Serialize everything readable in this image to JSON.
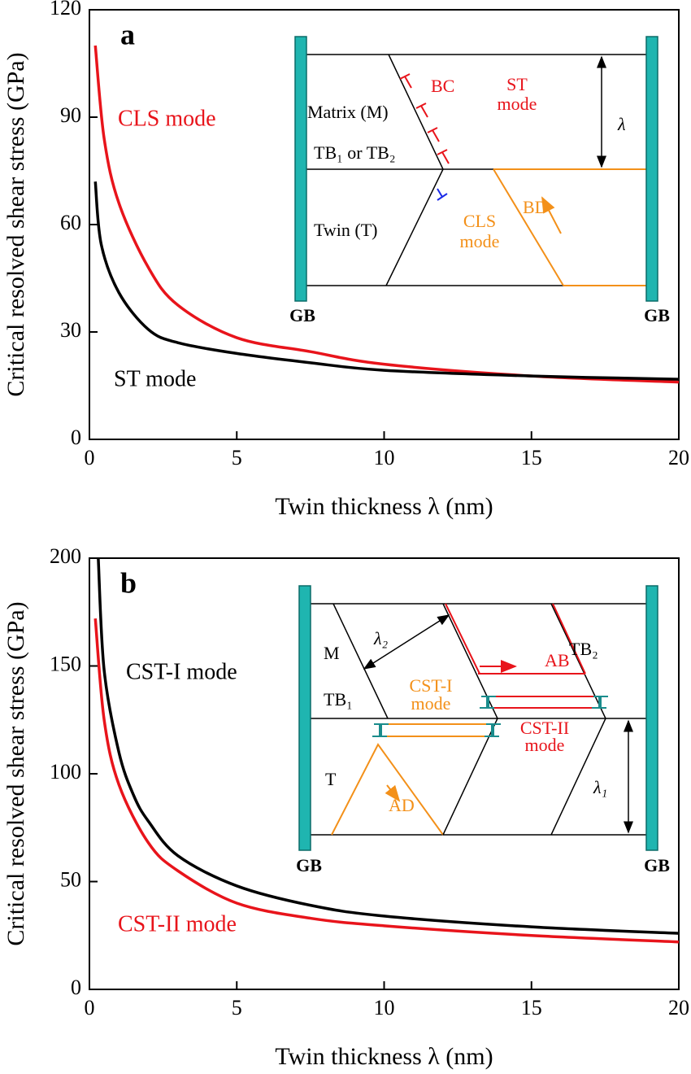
{
  "chart_data": [
    {
      "type": "line",
      "panel_label": "a",
      "x_label": "Twin thickness λ (nm)",
      "y_label": "Critical resolved shear stress (GPa)",
      "xlim": [
        0,
        20
      ],
      "ylim": [
        0,
        120
      ],
      "xticks": [
        0,
        5,
        10,
        15,
        20
      ],
      "yticks": [
        0,
        30,
        60,
        90,
        120
      ],
      "series": [
        {
          "name": "CLS mode",
          "color": "#e8141b",
          "x": [
            0.2,
            0.5,
            1,
            2,
            3,
            5,
            7.5,
            10,
            15,
            20
          ],
          "values": [
            110,
            84,
            66,
            48,
            37.5,
            28.4,
            24.5,
            21,
            17.7,
            16
          ]
        },
        {
          "name": "ST mode",
          "color": "#000000",
          "x": [
            0.2,
            0.4,
            1,
            2,
            3,
            5,
            7.5,
            10,
            15,
            20
          ],
          "values": [
            72,
            54.5,
            41,
            30.7,
            27,
            24,
            21.4,
            19.3,
            17.7,
            16.8
          ]
        }
      ],
      "inset_labels": [
        "BC",
        "ST",
        "mode",
        "Matrix (M)",
        "λ",
        "TB₁ or TB₂",
        "Twin (T)",
        "CLS",
        "mode",
        "BD",
        "GB",
        "GB"
      ]
    },
    {
      "type": "line",
      "panel_label": "b",
      "x_label": "Twin thickness λ (nm)",
      "y_label": "Critical resolved shear stress (GPa)",
      "xlim": [
        0,
        20
      ],
      "ylim": [
        0,
        200
      ],
      "xticks": [
        0,
        5,
        10,
        15,
        20
      ],
      "yticks": [
        0,
        50,
        100,
        150,
        200
      ],
      "series": [
        {
          "name": "CST-I mode",
          "color": "#000000",
          "x": [
            0.3,
            0.5,
            1,
            1.5,
            2,
            3,
            5,
            7.5,
            10,
            15,
            20
          ],
          "values": [
            200,
            148,
            110,
            90,
            78,
            62,
            48,
            39,
            34,
            29,
            26
          ]
        },
        {
          "name": "CST-II mode",
          "color": "#e8141b",
          "x": [
            0.2,
            0.5,
            1,
            2,
            3,
            5,
            7.5,
            10,
            15,
            20
          ],
          "values": [
            172,
            125,
            95,
            68,
            55,
            40,
            33,
            29.5,
            25,
            22
          ]
        }
      ],
      "inset_labels": [
        "M",
        "λ₂",
        "TB₂",
        "AB",
        "TB₁",
        "CST-I",
        "mode",
        "CST-II",
        "mode",
        "T",
        "AD",
        "λ₁",
        "GB",
        "GB"
      ]
    }
  ]
}
